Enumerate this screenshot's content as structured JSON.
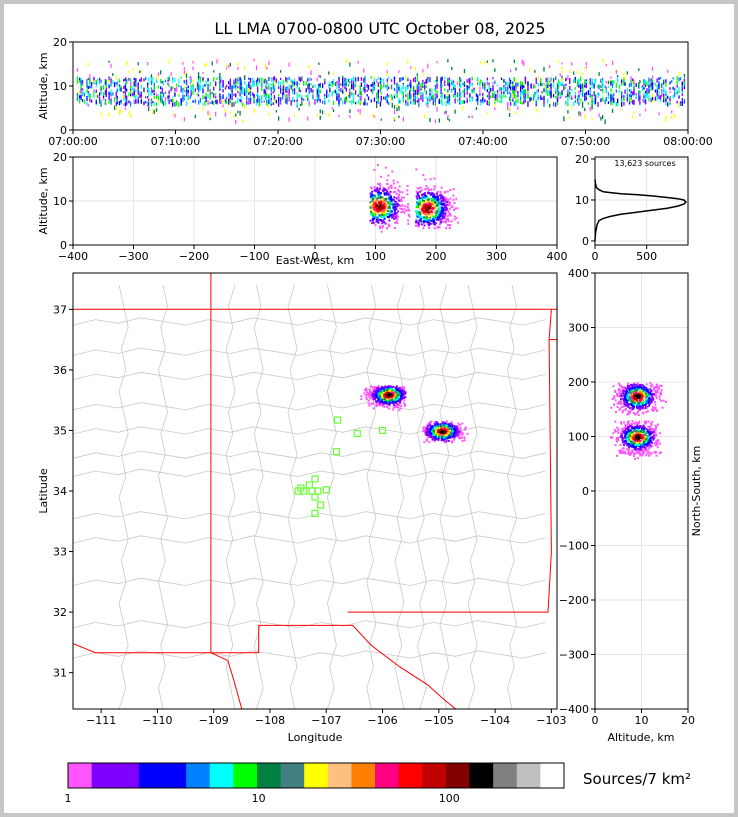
{
  "title": "LL LMA 0700-0800 UTC October 08, 2025",
  "colors": {
    "frame": "#c6c6c6",
    "boundary_state": "#ff0000",
    "boundary_county": "#c8c8c8",
    "stations": "#66ff33",
    "axis": "#000000"
  },
  "colorbar": {
    "colors": [
      "#ff55ff",
      "#8000ff",
      "#8000ff",
      "#0000ff",
      "#0000ff",
      "#0080ff",
      "#00ffff",
      "#00ff00",
      "#008040",
      "#408080",
      "#ffff00",
      "#ffc080",
      "#ff8000",
      "#ff0080",
      "#ff0000",
      "#c00000",
      "#800000",
      "#000000",
      "#808080",
      "#c0c0c0",
      "#ffffff"
    ],
    "ticks": [
      {
        "label": "1",
        "value": 1
      },
      {
        "label": "10",
        "value": 10
      },
      {
        "label": "100",
        "value": 100
      }
    ],
    "label": "Sources/7 km²"
  },
  "chart_data": [
    {
      "type": "scatter",
      "panel": "altitude-time",
      "title": "LL LMA 0700-0800 UTC October 08, 2025",
      "ylabel": "Altitude, km",
      "xlim": [
        "07:00:00",
        "08:00:00"
      ],
      "ylim": [
        0,
        20
      ],
      "xticks": [
        "07:00:00",
        "07:10:00",
        "07:20:00",
        "07:30:00",
        "07:40:00",
        "07:50:00",
        "08:00:00"
      ],
      "yticks": [
        0,
        10,
        20
      ],
      "alt_core_km": [
        6,
        12
      ],
      "alt_sparse_km": [
        2,
        16
      ]
    },
    {
      "type": "scatter",
      "panel": "altitude-east-west",
      "xlabel": "East-West, km",
      "ylabel": "Altitude, km",
      "xlim": [
        -400,
        400
      ],
      "ylim": [
        0,
        20
      ],
      "xticks": [
        -400,
        -300,
        -200,
        -100,
        0,
        100,
        200,
        300,
        400
      ],
      "yticks": [
        0,
        10,
        20
      ],
      "clusters": [
        {
          "x_range_km": [
            90,
            160
          ],
          "alt_range_km": [
            3,
            19
          ],
          "peak": {
            "x": 105,
            "alt": 9
          }
        },
        {
          "x_range_km": [
            165,
            235
          ],
          "alt_range_km": [
            4,
            18
          ],
          "peak": {
            "x": 185,
            "alt": 8.5
          }
        }
      ]
    },
    {
      "type": "line",
      "panel": "altitude-histogram",
      "annotation": "13,623 sources",
      "xlim": [
        0,
        900
      ],
      "ylim": [
        0,
        20
      ],
      "xticks": [
        0,
        500
      ],
      "yticks": [
        0,
        10,
        20
      ],
      "x": [
        0,
        5,
        20,
        40,
        80,
        150,
        250,
        400,
        550,
        700,
        800,
        860,
        880,
        860,
        800,
        700,
        550,
        400,
        250,
        150,
        80,
        40,
        15,
        5,
        0
      ],
      "y": [
        0,
        2,
        4,
        5,
        5.5,
        6,
        6.5,
        7,
        7.5,
        8,
        8.5,
        9,
        9.5,
        10,
        10.3,
        10.6,
        11,
        11.3,
        11.5,
        11.8,
        12,
        12.5,
        13,
        14,
        15
      ]
    },
    {
      "type": "scatter",
      "panel": "plan-view-map",
      "xlabel": "Longitude",
      "ylabel": "Latitude",
      "xlim": [
        -111.5,
        -102.9
      ],
      "ylim": [
        30.4,
        37.6
      ],
      "xticks": [
        -111,
        -110,
        -109,
        -108,
        -107,
        -106,
        -105,
        -104,
        -103
      ],
      "yticks": [
        31,
        32,
        33,
        34,
        35,
        36,
        37
      ],
      "clusters": [
        {
          "lon_range": [
            -106.4,
            -105.6
          ],
          "lat_range": [
            35.25,
            35.75
          ],
          "peak": {
            "lon": -105.9,
            "lat": 35.6
          }
        },
        {
          "lon_range": [
            -105.3,
            -104.5
          ],
          "lat_range": [
            34.8,
            35.2
          ],
          "peak": {
            "lon": -104.95,
            "lat": 35.0
          }
        }
      ],
      "stations": [
        {
          "lon": -107.2,
          "lat": 34.2
        },
        {
          "lon": -107.3,
          "lat": 34.1
        },
        {
          "lon": -107.45,
          "lat": 34.05
        },
        {
          "lon": -107.5,
          "lat": 34.0
        },
        {
          "lon": -107.4,
          "lat": 34.0
        },
        {
          "lon": -107.25,
          "lat": 34.0
        },
        {
          "lon": -107.15,
          "lat": 34.0
        },
        {
          "lon": -107.0,
          "lat": 34.02
        },
        {
          "lon": -107.2,
          "lat": 33.9
        },
        {
          "lon": -107.1,
          "lat": 33.77
        },
        {
          "lon": -107.2,
          "lat": 33.63
        },
        {
          "lon": -106.8,
          "lat": 35.17
        },
        {
          "lon": -106.45,
          "lat": 34.95
        },
        {
          "lon": -106.82,
          "lat": 34.65
        },
        {
          "lon": -106.0,
          "lat": 35.0
        }
      ]
    },
    {
      "type": "scatter",
      "panel": "north-south-altitude",
      "xlabel": "Altitude, km",
      "ylabel": "North-South, km",
      "xlim": [
        0,
        20
      ],
      "ylim": [
        -400,
        400
      ],
      "xticks": [
        0,
        10,
        20
      ],
      "yticks": [
        -400,
        -300,
        -200,
        -100,
        0,
        100,
        200,
        300,
        400
      ],
      "clusters": [
        {
          "ns_range_km": [
            140,
            200
          ],
          "alt_range_km": [
            3,
            17
          ],
          "peak": {
            "alt": 9,
            "ns": 175
          }
        },
        {
          "ns_range_km": [
            60,
            130
          ],
          "alt_range_km": [
            3,
            14
          ],
          "peak": {
            "alt": 9,
            "ns": 100
          }
        }
      ]
    }
  ]
}
